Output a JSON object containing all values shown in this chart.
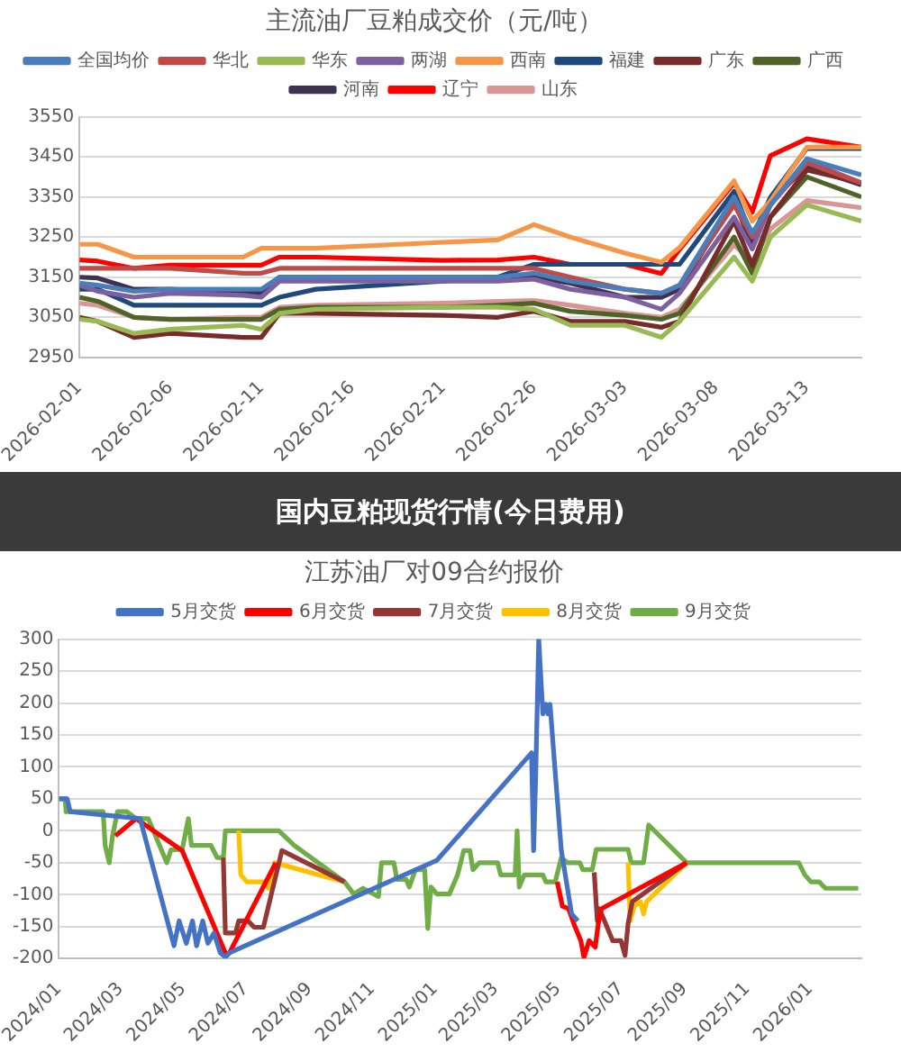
{
  "chart_data": [
    {
      "type": "line",
      "title": "主流油厂豆粕成交价（元/吨）",
      "annotations": [
        "国内豆粕现货行情(今日费用)"
      ],
      "marker": "none",
      "line_style": "solid",
      "grid": "y",
      "legend": "top",
      "xlim": [
        "2026-02-01",
        "2026-03-16"
      ],
      "xticks": [
        "2026-02-01",
        "2026-02-06",
        "2026-02-11",
        "2026-02-16",
        "2026-02-21",
        "2026-02-26",
        "2026-03-03",
        "2026-03-08",
        "2026-03-13"
      ],
      "ylim": [
        2950,
        3550
      ],
      "yticks": [
        2950,
        3050,
        3150,
        3250,
        3350,
        3450,
        3550
      ],
      "x": [
        "2026-02-01",
        "2026-02-02",
        "2026-02-04",
        "2026-02-06",
        "2026-02-10",
        "2026-02-11",
        "2026-02-12",
        "2026-02-14",
        "2026-02-21",
        "2026-02-24",
        "2026-02-26",
        "2026-02-28",
        "2026-03-03",
        "2026-03-05",
        "2026-03-06",
        "2026-03-09",
        "2026-03-10",
        "2026-03-11",
        "2026-03-13",
        "2026-03-16"
      ],
      "series": [
        {
          "name": "全国均价",
          "color": "#4a7ebb",
          "values": [
            3135,
            3130,
            3115,
            3120,
            3120,
            3120,
            3150,
            3150,
            3150,
            3150,
            3160,
            3140,
            3120,
            3110,
            3130,
            3350,
            3260,
            3330,
            3445,
            3405
          ]
        },
        {
          "name": "华北",
          "color": "#be4b48",
          "values": [
            3172,
            3172,
            3172,
            3172,
            3160,
            3160,
            3172,
            3172,
            3172,
            3172,
            3172,
            3150,
            3120,
            3110,
            3130,
            3330,
            3250,
            3330,
            3435,
            3385
          ]
        },
        {
          "name": "华东",
          "color": "#98b954",
          "values": [
            3045,
            3040,
            3010,
            3020,
            3030,
            3020,
            3060,
            3070,
            3075,
            3075,
            3070,
            3030,
            3030,
            3000,
            3040,
            3200,
            3140,
            3250,
            3330,
            3290
          ]
        },
        {
          "name": "两湖",
          "color": "#7d60a0",
          "values": [
            3130,
            3115,
            3100,
            3110,
            3105,
            3100,
            3140,
            3140,
            3140,
            3140,
            3145,
            3120,
            3100,
            3070,
            3110,
            3300,
            3220,
            3330,
            3440,
            3385
          ]
        },
        {
          "name": "西南",
          "color": "#f79646",
          "values": [
            3232,
            3232,
            3200,
            3200,
            3200,
            3222,
            3222,
            3222,
            3237,
            3243,
            3281,
            3250,
            3210,
            3187,
            3224,
            3390,
            3290,
            3340,
            3474,
            3474
          ]
        },
        {
          "name": "福建",
          "color": "#1f497d",
          "values": [
            3120,
            3120,
            3080,
            3080,
            3080,
            3080,
            3100,
            3120,
            3140,
            3150,
            3182,
            3182,
            3182,
            3182,
            3182,
            3364,
            3250,
            3349,
            3471,
            3471
          ]
        },
        {
          "name": "广东",
          "color": "#772c2a",
          "values": [
            3050,
            3040,
            3000,
            3010,
            3000,
            3000,
            3060,
            3060,
            3055,
            3050,
            3065,
            3040,
            3040,
            3025,
            3040,
            3290,
            3180,
            3300,
            3417,
            3385
          ]
        },
        {
          "name": "广西",
          "color": "#4f6228",
          "values": [
            3100,
            3090,
            3050,
            3045,
            3045,
            3045,
            3070,
            3075,
            3075,
            3080,
            3085,
            3065,
            3055,
            3045,
            3060,
            3250,
            3160,
            3300,
            3400,
            3350
          ]
        },
        {
          "name": "河南",
          "color": "#3f3151",
          "values": [
            3150,
            3148,
            3120,
            3120,
            3110,
            3110,
            3150,
            3150,
            3150,
            3150,
            3150,
            3135,
            3100,
            3100,
            3120,
            3340,
            3230,
            3340,
            3425,
            3380
          ]
        },
        {
          "name": "辽宁",
          "color": "#ff0000",
          "values": [
            3193,
            3190,
            3172,
            3180,
            3180,
            3180,
            3200,
            3200,
            3192,
            3193,
            3200,
            3182,
            3182,
            3159,
            3219,
            3385,
            3312,
            3453,
            3495,
            3474
          ]
        },
        {
          "name": "山东",
          "color": "#d99694",
          "values": [
            3085,
            3080,
            3050,
            3045,
            3050,
            3050,
            3075,
            3080,
            3085,
            3090,
            3092,
            3080,
            3060,
            3050,
            3070,
            3230,
            3190,
            3270,
            3341,
            3323
          ]
        }
      ]
    },
    {
      "type": "line",
      "title": "江苏油厂对09合约报价",
      "marker": "none",
      "line_style": "solid",
      "grid": "y",
      "legend": "top",
      "xlim": [
        "2024-01-01",
        "2026-02-20"
      ],
      "xticks": [
        {
          "value": "2024-01",
          "label": "2024/01"
        },
        {
          "value": "2024-03",
          "label": "2024/03"
        },
        {
          "value": "2024-05",
          "label": "2024/05"
        },
        {
          "value": "2024-07",
          "label": "2024/07"
        },
        {
          "value": "2024-09",
          "label": "2024/09"
        },
        {
          "value": "2024-11",
          "label": "2024/11"
        },
        {
          "value": "2025-01",
          "label": "2025/01"
        },
        {
          "value": "2025-03",
          "label": "2025/03"
        },
        {
          "value": "2025-05",
          "label": "2025/05"
        },
        {
          "value": "2025-07",
          "label": "2025/07"
        },
        {
          "value": "2025-09",
          "label": "2025/09"
        },
        {
          "value": "2025-11",
          "label": "2025/11"
        },
        {
          "value": "2026-01",
          "label": "2026/01"
        }
      ],
      "ylim": [
        -200,
        300
      ],
      "yticks": [
        -200,
        -150,
        -100,
        -50,
        0,
        50,
        100,
        150,
        200,
        250,
        300
      ],
      "series": [
        {
          "name": "5月交货",
          "color": "#4472c4",
          "x": [
            "2024-01-01",
            "2024-01-09",
            "2024-01-12",
            "2024-03-20",
            "2024-04-22",
            "2024-04-27",
            "2024-05-04",
            "2024-05-10",
            "2024-05-14",
            "2024-05-20",
            "2024-05-25",
            "2024-05-31",
            "2024-06-06",
            "2024-06-11",
            "2024-06-15",
            "2025-01-03",
            "2025-04-05",
            "2025-04-07",
            "2025-04-09",
            "2025-04-12",
            "2025-04-16",
            "2025-04-19",
            "2025-04-21",
            "2025-04-23",
            "2025-04-28",
            "2025-05-04",
            "2025-05-14",
            "2025-05-20"
          ],
          "values": [
            50,
            50,
            30,
            19,
            -180,
            -141,
            -176,
            -141,
            -180,
            -141,
            -176,
            -160,
            -191,
            -198,
            -191,
            -46,
            122,
            -31,
            84,
            300,
            183,
            198,
            183,
            198,
            92,
            -31,
            -130,
            -141
          ]
        },
        {
          "name": "6月交货",
          "color": "#ff0000",
          "x": [
            "2024-02-25",
            "2024-03-16",
            "2024-04-30",
            "2024-06-12",
            "2024-06-15",
            "2024-07-30",
            "2024-12-01",
            "2025-04-30",
            "2025-05-05",
            "2025-05-11",
            "2025-05-17",
            "2025-05-23",
            "2025-05-26",
            "2025-05-31",
            "2025-06-06",
            "2025-06-09",
            "2025-06-12",
            "2025-09-03"
          ],
          "values": [
            -8,
            19,
            -31,
            -195,
            -191,
            -50,
            null,
            -80,
            -118,
            -122,
            -149,
            -172,
            -198,
            -172,
            -182,
            -145,
            -122,
            -50
          ]
        },
        {
          "name": "7月交货",
          "color": "#953735",
          "x": [
            "2024-06-09",
            "2024-06-11",
            "2024-06-21",
            "2024-06-24",
            "2024-07-03",
            "2024-07-09",
            "2024-07-18",
            "2024-08-05",
            "2024-10-05",
            "2025-01-01",
            "2025-06-05",
            "2025-06-08",
            "2025-06-10",
            "2025-06-16",
            "2025-06-23",
            "2025-07-01",
            "2025-07-05",
            "2025-07-08",
            "2025-07-12",
            "2025-09-03"
          ],
          "values": [
            -42,
            -160,
            -160,
            -141,
            -141,
            -151,
            -151,
            -31,
            -80,
            null,
            -65,
            -141,
            -122,
            -145,
            -172,
            -172,
            -195,
            -145,
            -111,
            -50
          ]
        },
        {
          "name": "8月交货",
          "color": "#ffc000",
          "x": [
            "2024-06-24",
            "2024-06-26",
            "2024-07-02",
            "2024-07-20",
            "2024-07-23",
            "2024-07-29",
            "2024-10-05",
            "2025-01-01",
            "2025-07-08",
            "2025-07-10",
            "2025-07-14",
            "2025-07-20",
            "2025-07-23",
            "2025-07-26",
            "2025-09-03"
          ],
          "values": [
            0,
            -69,
            -80,
            -80,
            -90,
            -50,
            -80,
            null,
            -50,
            -141,
            -118,
            -111,
            -130,
            -111,
            -50
          ]
        },
        {
          "name": "9月交货",
          "color": "#70ad47",
          "x": [
            "2024-01-01",
            "2024-01-07",
            "2024-01-08",
            "2024-02-13",
            "2024-02-15",
            "2024-02-19",
            "2024-02-22",
            "2024-02-27",
            "2024-03-07",
            "2024-03-16",
            "2024-03-28",
            "2024-04-15",
            "2024-04-19",
            "2024-04-30",
            "2024-05-06",
            "2024-05-09",
            "2024-05-28",
            "2024-06-03",
            "2024-06-09",
            "2024-06-11",
            "2024-08-02",
            "2024-08-17",
            "2024-10-05",
            "2024-10-14",
            "2024-10-23",
            "2024-11-07",
            "2024-11-10",
            "2024-11-22",
            "2024-11-25",
            "2024-12-04",
            "2024-12-07",
            "2024-12-13",
            "2024-12-22",
            "2024-12-25",
            "2024-12-28",
            "2025-01-03",
            "2025-01-15",
            "2025-01-23",
            "2025-01-29",
            "2025-02-04",
            "2025-02-07",
            "2025-02-13",
            "2025-03-03",
            "2025-03-06",
            "2025-03-20",
            "2025-03-22",
            "2025-03-24",
            "2025-03-29",
            "2025-04-16",
            "2025-04-19",
            "2025-04-28",
            "2025-05-04",
            "2025-05-10",
            "2025-05-22",
            "2025-05-25",
            "2025-06-03",
            "2025-06-07",
            "2025-07-08",
            "2025-07-11",
            "2025-07-23",
            "2025-07-28",
            "2025-09-03",
            "2025-12-21",
            "2025-12-27",
            "2026-01-02",
            "2026-01-10",
            "2026-01-16",
            "2026-02-17"
          ],
          "values": [
            50,
            50,
            30,
            30,
            -23,
            -50,
            -10,
            30,
            30,
            19,
            19,
            -50,
            -30,
            -29,
            19,
            -23,
            -23,
            -42,
            -42,
            0,
            0,
            -23,
            -80,
            -99,
            -90,
            -103,
            -50,
            -50,
            -76,
            -76,
            -88,
            -61,
            -61,
            -153,
            -88,
            -99,
            -99,
            -69,
            -31,
            -31,
            -61,
            -50,
            -50,
            -69,
            -69,
            0,
            -88,
            -69,
            -69,
            -80,
            -80,
            -42,
            -50,
            -50,
            -61,
            -61,
            -29,
            -29,
            -50,
            -50,
            9,
            -50,
            -50,
            -69,
            -80,
            -80,
            -90,
            -90
          ]
        }
      ]
    }
  ]
}
